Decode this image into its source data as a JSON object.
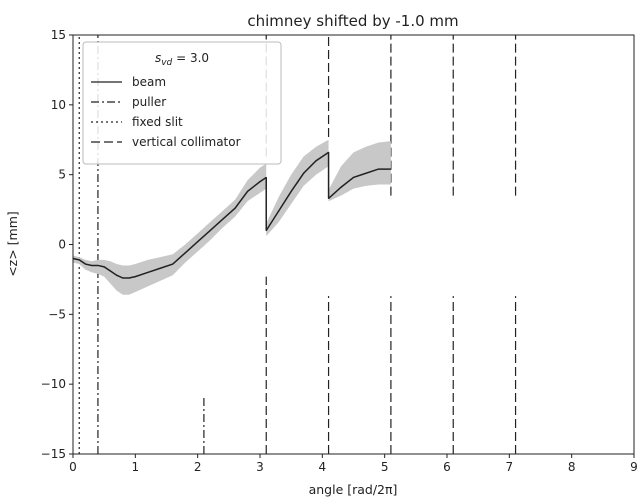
{
  "chart_data": {
    "type": "line",
    "title": "chimney shifted by -1.0 mm",
    "xlabel": "angle [rad/2π]",
    "ylabel": "<z> [mm]",
    "xlim": [
      0,
      9
    ],
    "ylim": [
      -15,
      15
    ],
    "xticks": [
      0,
      1,
      2,
      3,
      4,
      5,
      6,
      7,
      8,
      9
    ],
    "yticks": [
      -15,
      -10,
      -5,
      0,
      5,
      10,
      15
    ],
    "grid": false,
    "legend": {
      "position": "top-left",
      "title": "s_vd = 3.0",
      "title_main": "s",
      "title_sub": "vd",
      "title_rest": " = 3.0",
      "entries": [
        {
          "label": "beam",
          "style": "solid"
        },
        {
          "label": "puller",
          "style": "dash-dot"
        },
        {
          "label": "fixed slit",
          "style": "dotted"
        },
        {
          "label": "vertical collimator",
          "style": "dashed"
        }
      ]
    },
    "colors": {
      "line": "#222222",
      "band": "#c8c8c8"
    },
    "series": [
      {
        "name": "beam",
        "segments": [
          {
            "x": [
              0.0,
              0.1,
              0.2,
              0.3,
              0.4,
              0.5,
              0.6,
              0.7,
              0.8,
              0.9,
              1.0,
              1.2,
              1.4,
              1.6,
              1.8,
              2.0,
              2.2,
              2.4,
              2.6,
              2.8,
              3.0,
              3.1
            ],
            "y": [
              -1.0,
              -1.1,
              -1.4,
              -1.5,
              -1.5,
              -1.6,
              -1.9,
              -2.2,
              -2.4,
              -2.4,
              -2.3,
              -2.0,
              -1.7,
              -1.4,
              -0.6,
              0.2,
              1.0,
              1.8,
              2.6,
              3.8,
              4.5,
              4.8
            ],
            "upper": [
              -0.8,
              -0.9,
              -1.1,
              -1.2,
              -1.1,
              -1.1,
              -1.2,
              -1.4,
              -1.5,
              -1.5,
              -1.4,
              -1.1,
              -0.9,
              -0.7,
              0.0,
              0.8,
              1.6,
              2.4,
              3.2,
              4.6,
              5.5,
              5.8
            ],
            "lower": [
              -1.3,
              -1.4,
              -1.8,
              -2.0,
              -2.1,
              -2.3,
              -2.8,
              -3.3,
              -3.6,
              -3.6,
              -3.4,
              -3.0,
              -2.6,
              -2.2,
              -1.3,
              -0.5,
              0.3,
              1.2,
              2.0,
              3.1,
              3.7,
              4.0
            ]
          },
          {
            "x": [
              3.1,
              3.3,
              3.5,
              3.7,
              3.9,
              4.1
            ],
            "y": [
              1.0,
              2.4,
              3.8,
              5.1,
              6.0,
              6.6
            ],
            "upper": [
              1.5,
              3.4,
              5.0,
              6.3,
              7.0,
              7.5
            ],
            "lower": [
              0.6,
              1.6,
              2.9,
              4.2,
              5.0,
              5.6
            ]
          },
          {
            "x": [
              4.1,
              4.3,
              4.5,
              4.7,
              4.9,
              5.1
            ],
            "y": [
              3.3,
              4.1,
              4.8,
              5.1,
              5.4,
              5.4
            ],
            "upper": [
              3.9,
              5.6,
              6.6,
              7.0,
              7.3,
              7.4
            ],
            "lower": [
              3.1,
              3.5,
              4.0,
              4.2,
              4.3,
              4.3
            ]
          }
        ]
      }
    ],
    "vlines": [
      {
        "type": "fixed slit",
        "style": "dotted",
        "x": 0.1,
        "ranges": [
          [
            -15,
            15
          ]
        ]
      },
      {
        "type": "puller",
        "style": "dash-dot",
        "x": 0.4,
        "ranges": [
          [
            -15,
            15
          ]
        ]
      },
      {
        "type": "puller",
        "style": "dash-dot",
        "x": 2.1,
        "ranges": [
          [
            -15,
            -10.8
          ]
        ]
      },
      {
        "type": "vertical collimator",
        "style": "dashed",
        "x": 3.1,
        "ranges": [
          [
            -15,
            -2.3
          ],
          [
            6.3,
            15
          ]
        ]
      },
      {
        "type": "vertical collimator",
        "style": "dashed",
        "x": 4.1,
        "ranges": [
          [
            -15,
            -3.7
          ],
          [
            7.7,
            15
          ]
        ]
      },
      {
        "type": "vertical collimator",
        "style": "dashed",
        "x": 5.1,
        "ranges": [
          [
            -15,
            -3.7
          ],
          [
            3.5,
            15
          ]
        ]
      },
      {
        "type": "vertical collimator",
        "style": "dashed",
        "x": 6.1,
        "ranges": [
          [
            -15,
            -3.7
          ],
          [
            3.5,
            15
          ]
        ]
      },
      {
        "type": "vertical collimator",
        "style": "dashed",
        "x": 7.1,
        "ranges": [
          [
            -15,
            -3.7
          ],
          [
            3.5,
            15
          ]
        ]
      }
    ]
  }
}
